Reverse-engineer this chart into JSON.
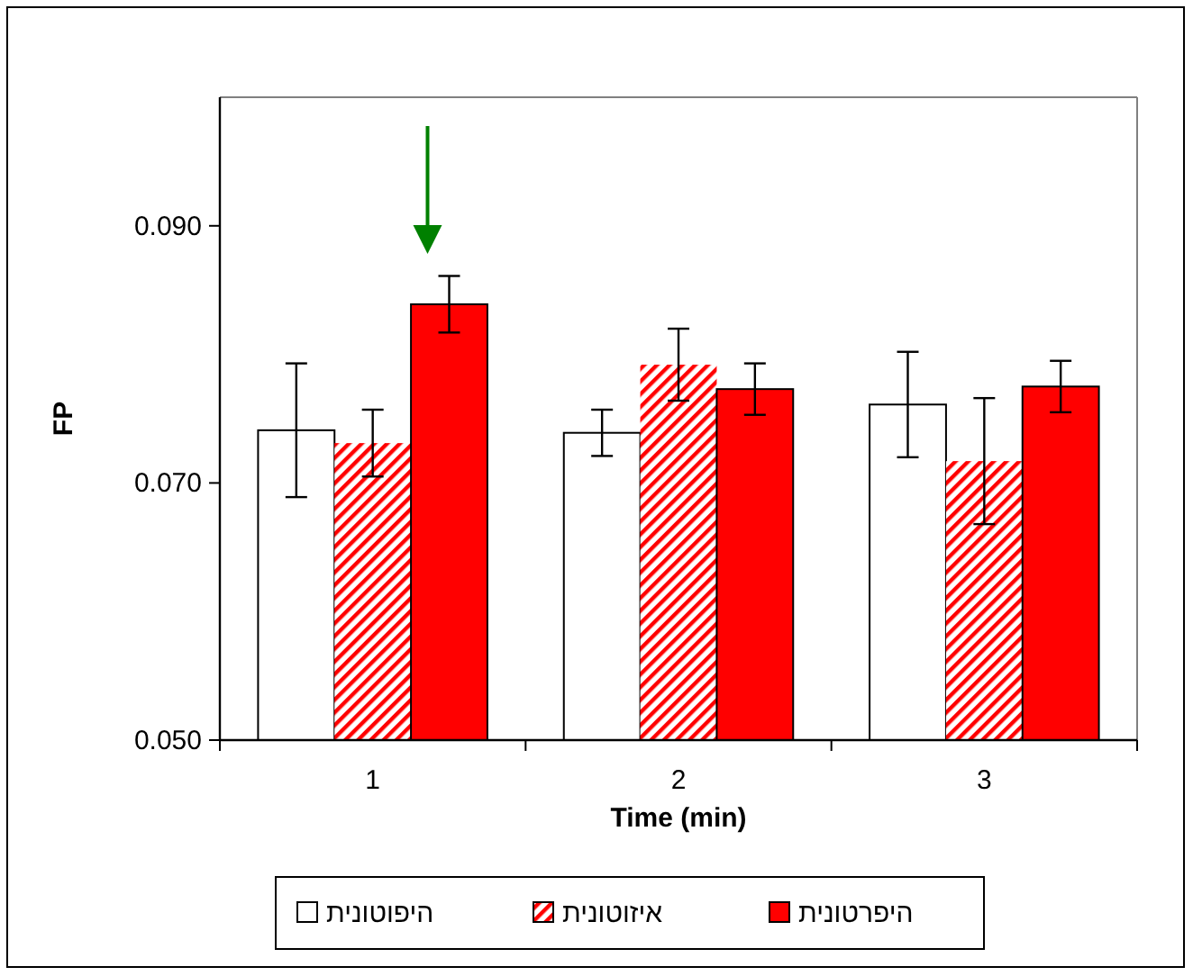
{
  "chart_data": {
    "type": "bar",
    "xlabel": "Time (min)",
    "ylabel": "FP",
    "categories": [
      "1",
      "2",
      "3"
    ],
    "series": [
      {
        "name": "היפוטונית",
        "color": "#ffffff",
        "values": [
          0.0741,
          0.0739,
          0.0761
        ],
        "errors": [
          0.0052,
          0.0018,
          0.0041
        ]
      },
      {
        "name": "איזוטונית",
        "color": "#ff0000",
        "values": [
          0.0731,
          0.0792,
          0.0717
        ],
        "errors": [
          0.0026,
          0.0028,
          0.0049
        ]
      },
      {
        "name": "היפרטונית",
        "color": "#ff0000",
        "values": [
          0.0839,
          0.0773,
          0.0775
        ],
        "errors": [
          0.0022,
          0.002,
          0.002
        ]
      }
    ],
    "ylim": [
      0.05,
      0.1
    ],
    "yticks": [
      {
        "value": 0.05,
        "label": "0.050"
      },
      {
        "value": 0.07,
        "label": "0.070"
      },
      {
        "value": 0.09,
        "label": "0.090"
      }
    ],
    "grid": false,
    "legend": "bottom"
  }
}
